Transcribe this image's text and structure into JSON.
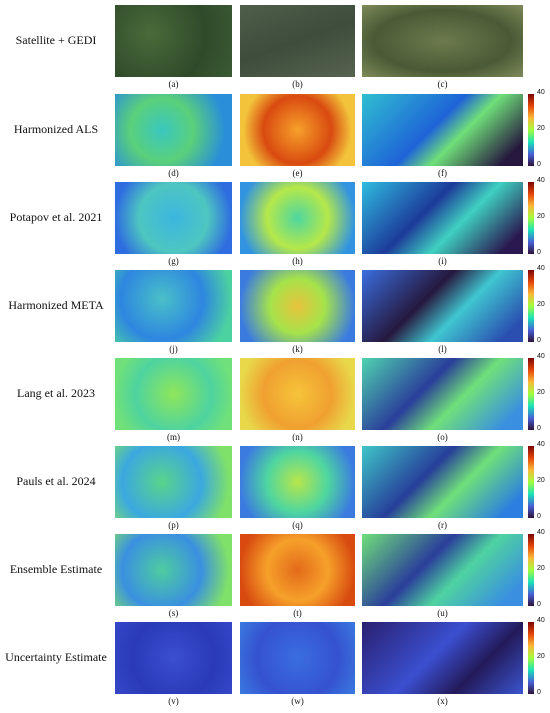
{
  "rows": [
    {
      "label": "Satellite + GEDI",
      "panels": [
        "(a)",
        "(b)",
        "(c)"
      ]
    },
    {
      "label": "Harmonized ALS",
      "panels": [
        "(d)",
        "(e)",
        "(f)"
      ]
    },
    {
      "label": "Potapov et al. 2021",
      "panels": [
        "(g)",
        "(h)",
        "(i)"
      ]
    },
    {
      "label": "Harmonized META",
      "panels": [
        "(j)",
        "(k)",
        "(l)"
      ]
    },
    {
      "label": "Lang et al. 2023",
      "panels": [
        "(m)",
        "(n)",
        "(o)"
      ]
    },
    {
      "label": "Pauls et al. 2024",
      "panels": [
        "(p)",
        "(q)",
        "(r)"
      ]
    },
    {
      "label": "Ensemble Estimate",
      "panels": [
        "(s)",
        "(t)",
        "(u)"
      ]
    },
    {
      "label": "Uncertainty Estimate",
      "panels": [
        "(v)",
        "(w)",
        "(x)"
      ]
    }
  ],
  "colorbar_ticks": [
    0,
    20,
    40
  ]
}
